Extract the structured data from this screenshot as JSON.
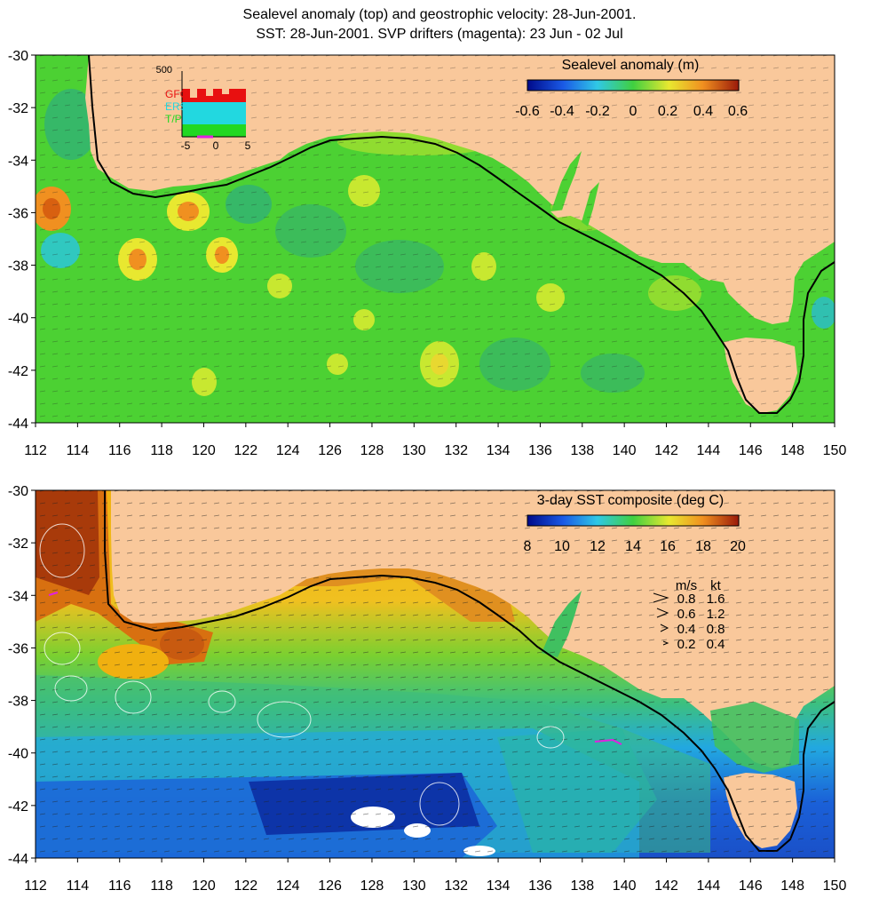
{
  "title_lines": [
    "Sealevel anomaly (top) and geostrophic velocity: 28-Jun-2001.",
    "SST: 28-Jun-2001. SVP drifters (magenta): 23 Jun - 02 Jul"
  ],
  "axes": {
    "lon_ticks": [
      "112",
      "114",
      "116",
      "118",
      "120",
      "122",
      "124",
      "126",
      "128",
      "130",
      "132",
      "134",
      "136",
      "138",
      "140",
      "142",
      "144",
      "146",
      "148",
      "150"
    ],
    "lat_ticks": [
      "-30",
      "-32",
      "-34",
      "-36",
      "-38",
      "-40",
      "-42",
      "-44"
    ],
    "lon_range": [
      112,
      150
    ],
    "lat_range": [
      -44,
      -30
    ]
  },
  "top_panel": {
    "colorbar_title": "Sealevel anomaly (m)",
    "colorbar_ticks": [
      "-0.6",
      "-0.4",
      "-0.2",
      "0",
      "0.2",
      "0.4",
      "0.6"
    ],
    "inset": {
      "ymax_label": "500",
      "series": [
        {
          "name": "GFO",
          "color": "#e81010"
        },
        {
          "name": "ERS-2",
          "color": "#22d8e0"
        },
        {
          "name": "T/P",
          "color": "#22d822"
        }
      ],
      "x_ticks": [
        "-5",
        "0",
        "5"
      ]
    }
  },
  "bottom_panel": {
    "colorbar_title": "3-day SST composite (deg C)",
    "colorbar_ticks": [
      "8",
      "10",
      "12",
      "14",
      "16",
      "18",
      "20"
    ],
    "velocity_key": {
      "header": [
        "m/s",
        "kt"
      ],
      "rows": [
        [
          "0.8",
          "1.6"
        ],
        [
          "0.6",
          "1.2"
        ],
        [
          "0.4",
          "0.8"
        ],
        [
          "0.2",
          "0.4"
        ]
      ]
    }
  },
  "colors": {
    "land": "#f9c89b",
    "sla_ocean": "#4cd133",
    "sst_warm": "#f0b010",
    "sst_cold": "#1a78d8"
  }
}
